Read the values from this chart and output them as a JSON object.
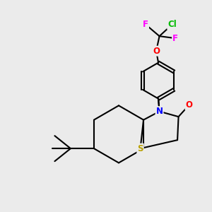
{
  "bg_color": "#ebebeb",
  "atom_colors": {
    "N": "#0000ff",
    "S": "#b8a000",
    "O_red": "#ff0000",
    "Cl": "#00bb00",
    "F": "#ff00ff",
    "C": "#000000"
  },
  "bond_color": "#000000",
  "bond_width": 1.5
}
